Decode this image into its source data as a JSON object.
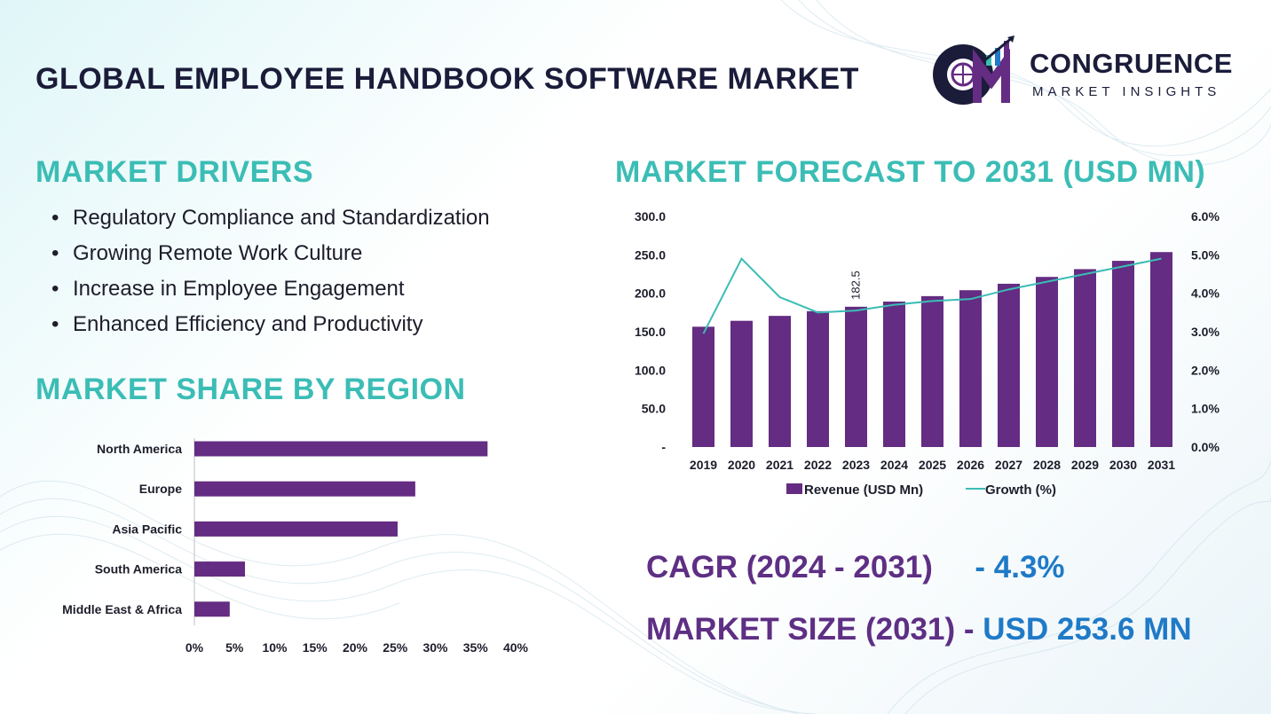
{
  "header": {
    "title": "GLOBAL EMPLOYEE HANDBOOK SOFTWARE MARKET",
    "logo_name": "CONGRUENCE",
    "logo_sub": "MARKET INSIGHTS"
  },
  "drivers": {
    "heading": "MARKET DRIVERS",
    "items": [
      "Regulatory Compliance and Standardization",
      "Growing Remote Work Culture",
      "Increase in Employee Engagement",
      "Enhanced Efficiency and Productivity"
    ]
  },
  "share": {
    "heading": "MARKET SHARE BY REGION"
  },
  "forecast": {
    "heading": "MARKET FORECAST TO 2031 (USD MN)"
  },
  "summary": {
    "cagr_label": "CAGR (2024 - 2031)",
    "cagr_value": "- 4.3%",
    "size_label": "MARKET SIZE (2031)",
    "size_dash": "-",
    "size_value": "USD  253.6 MN"
  },
  "colors": {
    "bar": "#642c82",
    "line": "#3bbdb5",
    "heading": "#3bbdb5",
    "title": "#1b1c3a",
    "value_blue": "#1f7ac7"
  },
  "chart_data": [
    {
      "type": "bar",
      "orientation": "horizontal",
      "categories": [
        "North America",
        "Europe",
        "Asia Pacific",
        "South America",
        "Middle East & Africa"
      ],
      "values": [
        36.5,
        27.5,
        25.3,
        6.3,
        4.4
      ],
      "xlim": [
        0,
        40
      ],
      "x_ticks": [
        "0%",
        "5%",
        "10%",
        "15%",
        "20%",
        "25%",
        "30%",
        "35%",
        "40%"
      ],
      "grid": false
    },
    {
      "type": "bar",
      "categories": [
        "2019",
        "2020",
        "2021",
        "2022",
        "2023",
        "2024",
        "2025",
        "2026",
        "2027",
        "2028",
        "2029",
        "2030",
        "2031"
      ],
      "series": [
        {
          "name": "Revenue (USD Mn)",
          "type": "bar",
          "axis": "left",
          "values": [
            156.5,
            164.2,
            170.6,
            176.7,
            182.5,
            189.2,
            196.3,
            204.0,
            212.4,
            221.3,
            231.4,
            242.2,
            253.6
          ]
        },
        {
          "name": "Growth (%)",
          "type": "line",
          "axis": "right",
          "values": [
            2.95,
            4.9,
            3.9,
            3.5,
            3.55,
            3.7,
            3.8,
            3.85,
            4.1,
            4.3,
            4.5,
            4.7,
            4.9
          ]
        }
      ],
      "data_labels": [
        {
          "category": "2023",
          "text": "182.5"
        }
      ],
      "y_left": {
        "ticks": [
          "-",
          "50.0",
          "100.0",
          "150.0",
          "200.0",
          "250.0",
          "300.0"
        ],
        "lim": [
          0,
          300
        ]
      },
      "y_right": {
        "ticks": [
          "0.0%",
          "1.0%",
          "2.0%",
          "3.0%",
          "4.0%",
          "5.0%",
          "6.0%"
        ],
        "lim": [
          0,
          6
        ]
      },
      "legend": "bottom",
      "grid": false
    }
  ]
}
